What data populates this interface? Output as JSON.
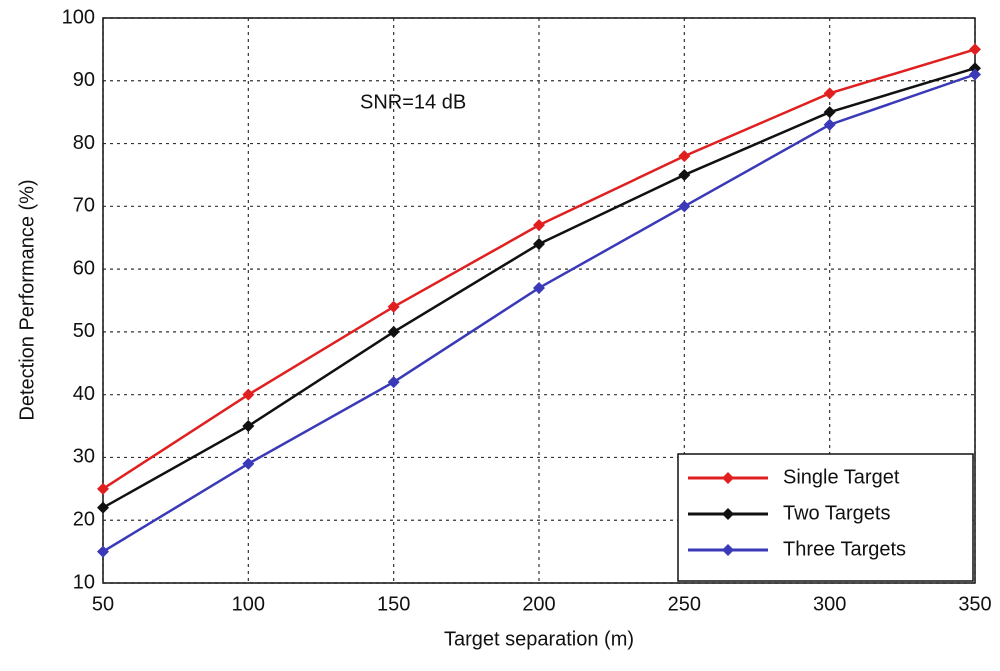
{
  "chart_data": {
    "type": "line",
    "x_label": "Target separation (m)",
    "y_label": "Detection Performance (%)",
    "annotation": "SNR=14 dB",
    "x": [
      50,
      100,
      150,
      200,
      250,
      300,
      350
    ],
    "series": [
      {
        "name": "Single Target",
        "color": "#e02020",
        "values": [
          25,
          40,
          54,
          67,
          78,
          88,
          95
        ]
      },
      {
        "name": "Two Targets",
        "color": "#111111",
        "values": [
          22,
          35,
          50,
          64,
          75,
          85,
          92
        ]
      },
      {
        "name": "Three Targets",
        "color": "#3a3ab8",
        "values": [
          15,
          29,
          42,
          57,
          70,
          83,
          91
        ]
      }
    ],
    "xlim": [
      50,
      350
    ],
    "xticks": [
      50,
      100,
      150,
      200,
      250,
      300,
      350
    ],
    "ylim": [
      10,
      100
    ],
    "yticks": [
      10,
      20,
      30,
      40,
      50,
      60,
      70,
      80,
      90,
      100
    ],
    "grid": true,
    "legend": "lower right"
  }
}
